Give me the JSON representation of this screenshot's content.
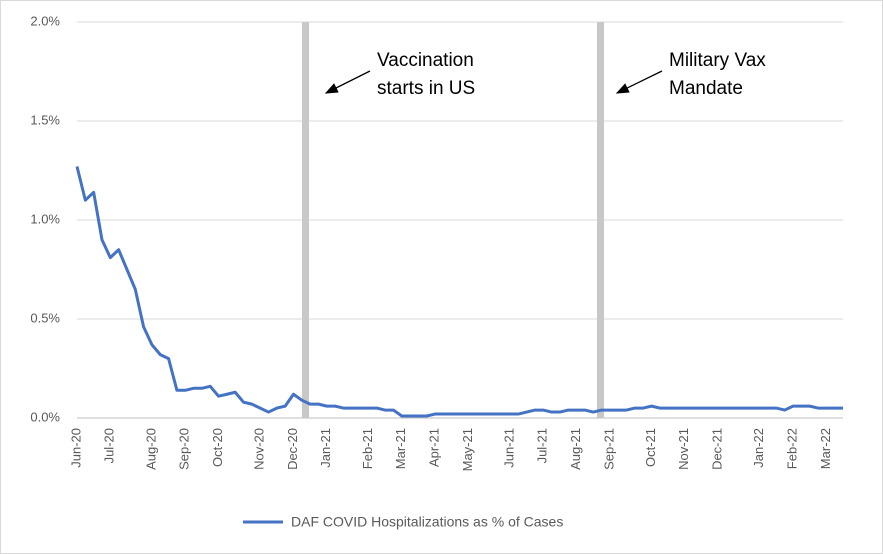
{
  "chart_data": {
    "type": "line",
    "categories": [
      "Jun-20",
      null,
      null,
      null,
      "Jul-20",
      null,
      null,
      null,
      null,
      "Aug-20",
      null,
      null,
      null,
      "Sep-20",
      null,
      null,
      null,
      "Oct-20",
      null,
      null,
      null,
      null,
      "Nov-20",
      null,
      null,
      null,
      "Dec-20",
      null,
      null,
      null,
      "Jan-21",
      null,
      null,
      null,
      null,
      "Feb-21",
      null,
      null,
      null,
      "Mar-21",
      null,
      null,
      null,
      "Apr-21",
      null,
      null,
      null,
      "May-21",
      null,
      null,
      null,
      null,
      "Jun-21",
      null,
      null,
      null,
      "Jul-21",
      null,
      null,
      null,
      "Aug-21",
      null,
      null,
      null,
      "Sep-21",
      null,
      null,
      null,
      null,
      "Oct-21",
      null,
      null,
      null,
      "Nov-21",
      null,
      null,
      null,
      "Dec-21",
      null,
      null,
      null,
      null,
      "Jan-22",
      null,
      null,
      null,
      "Feb-22",
      null,
      null,
      null,
      "Mar-22",
      null,
      null
    ],
    "series": [
      {
        "name": "DAF COVID Hospitalizations as % of Cases",
        "color": "#4472c4",
        "values": [
          1.27,
          1.1,
          1.14,
          0.9,
          0.81,
          0.85,
          0.75,
          0.65,
          0.46,
          0.37,
          0.32,
          0.3,
          0.14,
          0.14,
          0.15,
          0.15,
          0.16,
          0.11,
          0.12,
          0.13,
          0.08,
          0.07,
          0.05,
          0.03,
          0.05,
          0.06,
          0.12,
          0.09,
          0.07,
          0.07,
          0.06,
          0.06,
          0.05,
          0.05,
          0.05,
          0.05,
          0.05,
          0.04,
          0.04,
          0.01,
          0.01,
          0.01,
          0.01,
          0.02,
          0.02,
          0.02,
          0.02,
          0.02,
          0.02,
          0.02,
          0.02,
          0.02,
          0.02,
          0.02,
          0.03,
          0.04,
          0.04,
          0.03,
          0.03,
          0.04,
          0.04,
          0.04,
          0.03,
          0.04,
          0.04,
          0.04,
          0.04,
          0.05,
          0.05,
          0.06,
          0.05,
          0.05,
          0.05,
          0.05,
          0.05,
          0.05,
          0.05,
          0.05,
          0.05,
          0.05,
          0.05,
          0.05,
          0.05,
          0.05,
          0.05,
          0.04,
          0.06,
          0.06,
          0.06,
          0.05,
          0.05,
          0.05,
          0.05
        ]
      }
    ],
    "ylim": [
      0,
      2
    ],
    "yticks": [
      {
        "value": 0,
        "label": "0.0%"
      },
      {
        "value": 0.5,
        "label": "0.5%"
      },
      {
        "value": 1,
        "label": "1.0%"
      },
      {
        "value": 1.5,
        "label": "1.5%"
      },
      {
        "value": 2,
        "label": "2.0%"
      }
    ],
    "grid": true,
    "legend": "bottom",
    "annotations": [
      {
        "text": [
          "Vaccination",
          "starts in US"
        ]
      },
      {
        "text": [
          "Military Vax",
          "Mandate"
        ]
      }
    ]
  }
}
